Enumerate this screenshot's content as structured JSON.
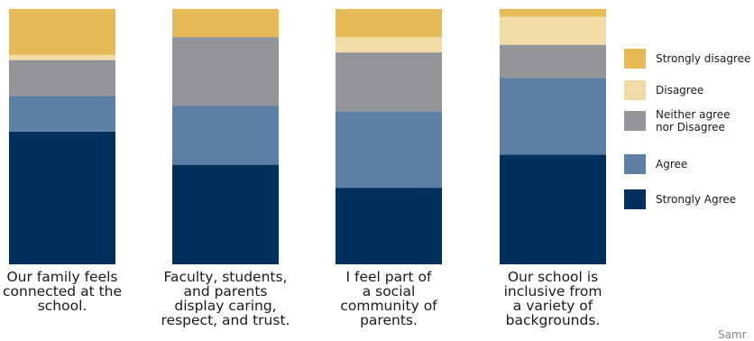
{
  "chart_data": {
    "type": "bar",
    "stacked": true,
    "normalized": true,
    "categories": [
      "Our family feels connected at the school.",
      "Faculty, students, and parents display caring, respect, and trust.",
      "I feel part of a social community of parents.",
      "Our school is inclusive from a variety of backgrounds."
    ],
    "series": [
      {
        "name": "Strongly Agree",
        "color": "#00305e",
        "values": [
          52,
          39,
          30,
          43
        ]
      },
      {
        "name": "Agree",
        "color": "#5d7fa6",
        "values": [
          14,
          23,
          30,
          30
        ]
      },
      {
        "name": "Neither agree nor Disagree",
        "color": "#939598",
        "values": [
          14,
          27,
          23,
          13
        ]
      },
      {
        "name": "Disagree",
        "color": "#f2dba6",
        "values": [
          2,
          0,
          6,
          11
        ]
      },
      {
        "name": "Strongly disagree",
        "color": "#e6bb57",
        "values": [
          18,
          11,
          11,
          3
        ]
      }
    ],
    "ylim": [
      0,
      100
    ],
    "grid": false,
    "legend_position": "right",
    "legend_order": [
      "Strongly disagree",
      "Disagree",
      "Neither agree nor Disagree",
      "Agree",
      "Strongly Agree"
    ]
  },
  "category_label_lines": [
    [
      "Our family feels",
      "connected at the",
      "school."
    ],
    [
      "Faculty, students,",
      "and parents",
      "display caring,",
      "respect, and trust."
    ],
    [
      "I feel part of",
      "a social",
      "community of",
      "parents."
    ],
    [
      "Our school is",
      "inclusive from",
      "a variety of",
      "backgrounds."
    ]
  ],
  "legend_label_lines": {
    "Strongly disagree": [
      "Strongly disagree"
    ],
    "Disagree": [
      "Disagree"
    ],
    "Neither agree nor Disagree": [
      "Neither agree",
      "nor Disagree"
    ],
    "Agree": [
      "Agree"
    ],
    "Strongly Agree": [
      "Strongly Agree"
    ]
  },
  "footer": {
    "text": "Samr"
  }
}
